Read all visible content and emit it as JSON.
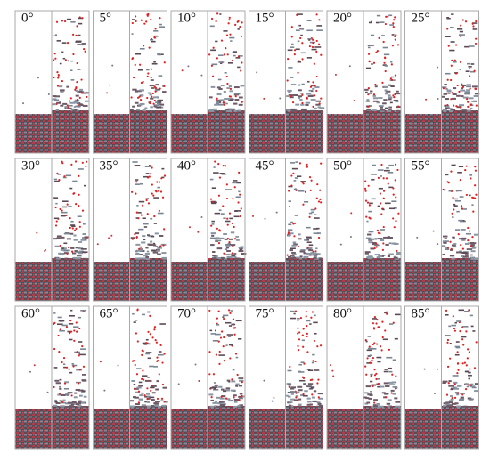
{
  "panels": [
    {
      "label": "0°"
    },
    {
      "label": "5°"
    },
    {
      "label": "10°"
    },
    {
      "label": "15°"
    },
    {
      "label": "20°"
    },
    {
      "label": "25°"
    },
    {
      "label": "30°"
    },
    {
      "label": "35°"
    },
    {
      "label": "40°"
    },
    {
      "label": "45°"
    },
    {
      "label": "50°"
    },
    {
      "label": "55°"
    },
    {
      "label": "60°"
    },
    {
      "label": "65°"
    },
    {
      "label": "70°"
    },
    {
      "label": "75°"
    },
    {
      "label": "80°"
    },
    {
      "label": "85°"
    }
  ]
}
